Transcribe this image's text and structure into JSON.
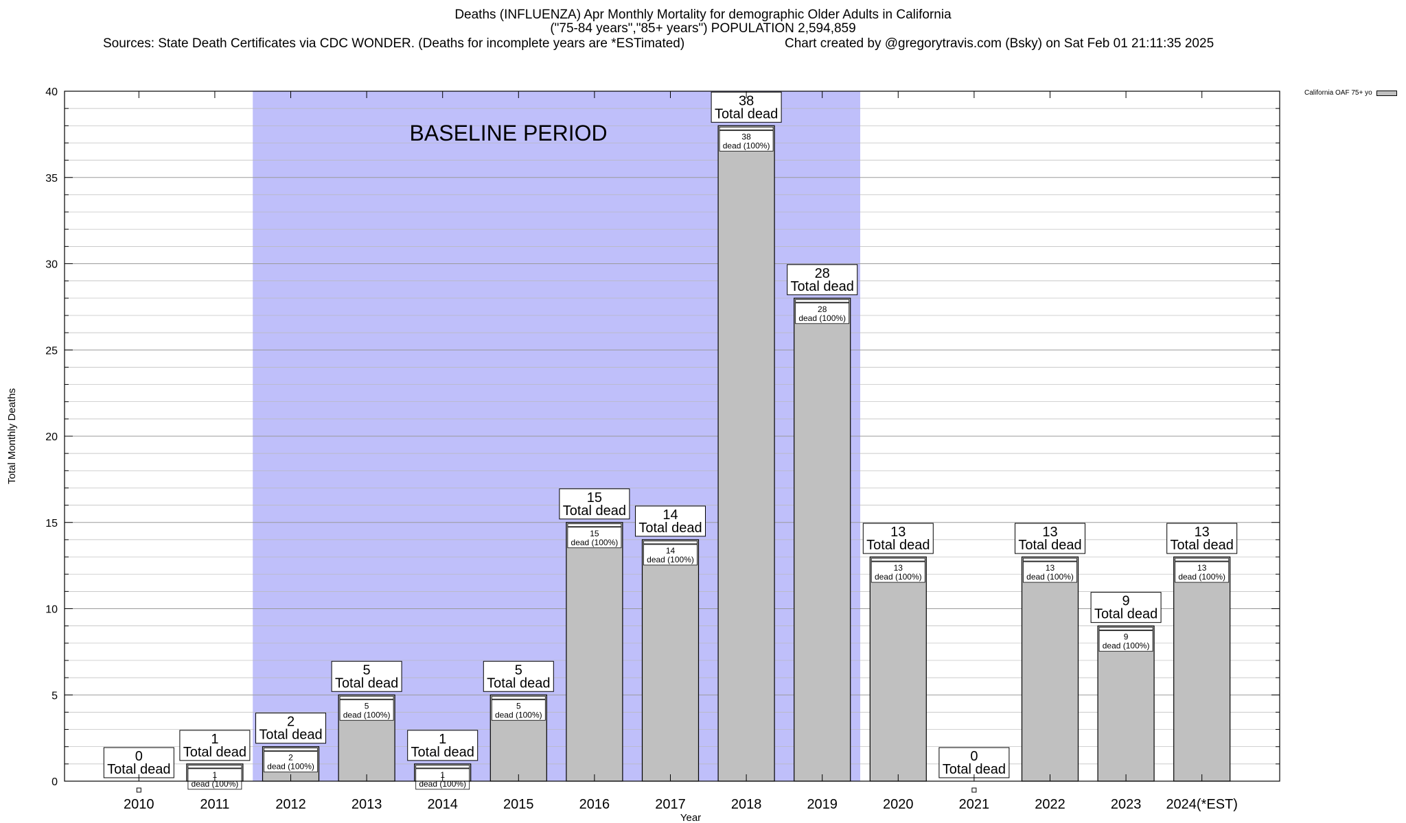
{
  "chart": {
    "title_line1": "Deaths (INFLUENZA) Apr Monthly Mortality for demographic Older Adults in California",
    "title_line2": "(\"75-84 years\",\"85+ years\") POPULATION 2,594,859",
    "sources": "Sources: State Death Certificates via CDC WONDER. (Deaths for incomplete years are *ESTimated)",
    "credit": "Chart created by @gregorytravis.com (Bsky) on Sat Feb 01 21:11:35 2025",
    "legend_label": "California OAF 75+ yo",
    "baseline_label": "BASELINE PERIOD",
    "total_dead_label": "Total dead",
    "inner_label_suffix": "dead (100%)"
  },
  "chart_data": {
    "type": "bar",
    "title": "Deaths (INFLUENZA) Apr Monthly Mortality for demographic Older Adults in California",
    "subtitle": "(\"75-84 years\",\"85+ years\") POPULATION 2,594,859",
    "xlabel": "Year",
    "ylabel": "Total Monthly Deaths",
    "categories": [
      "2010",
      "2011",
      "2012",
      "2013",
      "2014",
      "2015",
      "2016",
      "2017",
      "2018",
      "2019",
      "2020",
      "2021",
      "2022",
      "2023",
      "2024(*EST)"
    ],
    "values": [
      0,
      1,
      2,
      5,
      1,
      5,
      15,
      14,
      38,
      28,
      13,
      0,
      13,
      9,
      13
    ],
    "series": [
      {
        "name": "California OAF 75+ yo",
        "values": [
          0,
          1,
          2,
          5,
          1,
          5,
          15,
          14,
          38,
          28,
          13,
          0,
          13,
          9,
          13
        ]
      }
    ],
    "ylim": [
      0,
      40
    ],
    "yticks": [
      0,
      5,
      10,
      15,
      20,
      25,
      30,
      35,
      40
    ],
    "baseline_period": [
      "2012",
      "2019"
    ],
    "grid": true,
    "legend_position": "top-right",
    "colors": {
      "bar": "#c0c0c0",
      "baseline_shade": "#bfbffa",
      "grid": "#b8b8b8"
    }
  }
}
